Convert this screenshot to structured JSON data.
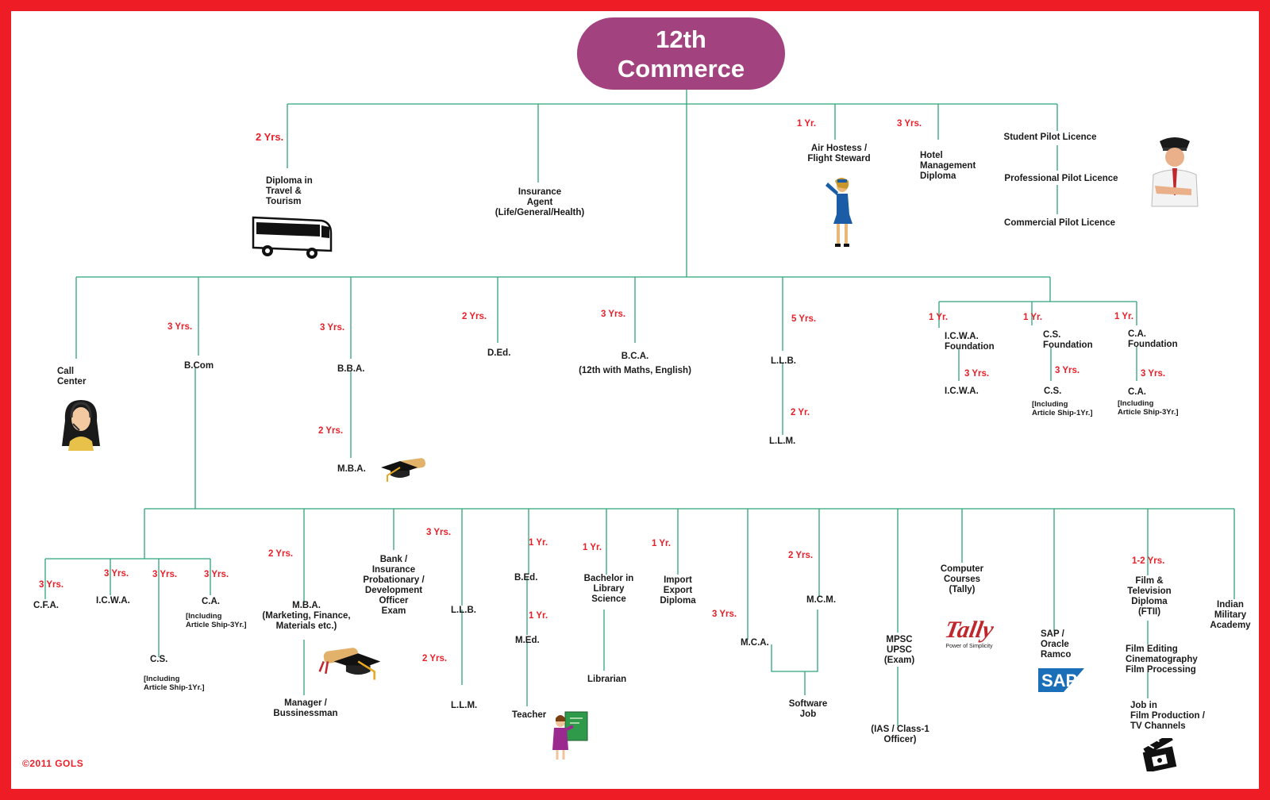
{
  "title": {
    "line1": "12th",
    "line2": "Commerce"
  },
  "colors": {
    "border": "#ee1c24",
    "line": "#2fa37a",
    "duration": "#e8202a",
    "title_bg": "#a2427e"
  },
  "top": {
    "travel": {
      "duration": "2 Yrs.",
      "label": [
        "Diploma in",
        "Travel &",
        "Tourism"
      ]
    },
    "insurance": {
      "label": [
        "Insurance",
        "Agent",
        "(Life/General/Health)"
      ]
    },
    "air": {
      "duration": "1 Yr.",
      "label": [
        "Air Hostess /",
        "Flight Steward"
      ]
    },
    "hotel": {
      "duration": "3 Yrs.",
      "label": [
        "Hotel",
        "Management",
        "Diploma"
      ]
    },
    "pilot": [
      "Student Pilot Licence",
      "Professional Pilot Licence",
      "Commercial Pilot Licence"
    ]
  },
  "mid": {
    "call": {
      "label": [
        "Call",
        "Center"
      ]
    },
    "bcom": {
      "duration": "3 Yrs.",
      "label": "B.Com"
    },
    "bba": {
      "duration": "3 Yrs.",
      "label": "B.B.A.",
      "mba_duration": "2 Yrs.",
      "mba": "M.B.A."
    },
    "ded": {
      "duration": "2 Yrs.",
      "label": "D.Ed."
    },
    "bca": {
      "duration": "3 Yrs.",
      "label": [
        "B.C.A.",
        "(12th with Maths, English)"
      ]
    },
    "llb": {
      "duration": "5 Yrs.",
      "label": "L.L.B.",
      "llm_duration": "2 Yr.",
      "llm": "L.L.M."
    },
    "icwa": {
      "duration": "1 Yr.",
      "label": [
        "I.C.W.A.",
        "Foundation"
      ],
      "next_duration": "3 Yrs.",
      "next": "I.C.W.A."
    },
    "cs": {
      "duration": "1 Yr.",
      "label": [
        "C.S.",
        "Foundation"
      ],
      "next_duration": "3 Yrs.",
      "next": "C.S.",
      "note": [
        "[Including",
        "Article Ship-1Yr.]"
      ]
    },
    "ca": {
      "duration": "1 Yr.",
      "label": [
        "C.A.",
        "Foundation"
      ],
      "next_duration": "3 Yrs.",
      "next": "C.A.",
      "note": [
        "[Including",
        "Article Ship-3Yr.]"
      ]
    }
  },
  "bottom": {
    "cfa": {
      "duration": "3 Yrs.",
      "label": "C.F.A."
    },
    "icwa": {
      "duration": "3 Yrs.",
      "label": "I.C.W.A."
    },
    "cs": {
      "duration": "3 Yrs.",
      "label": "C.S.",
      "note": [
        "[Including",
        "Article Ship-1Yr.]"
      ]
    },
    "ca": {
      "duration": "3 Yrs.",
      "label": "C.A.",
      "note": [
        "[Including",
        "Article Ship-3Yr.]"
      ]
    },
    "mba": {
      "duration": "2 Yrs.",
      "label": [
        "M.B.A.",
        "(Marketing, Finance,",
        "Materials etc.)"
      ],
      "next": [
        "Manager /",
        "Bussinessman"
      ]
    },
    "bank": {
      "label": [
        "Bank /",
        "Insurance",
        "Probationary /",
        "Development",
        "Officer",
        "Exam"
      ]
    },
    "llb": {
      "duration": "3 Yrs.",
      "label": "L.L.B.",
      "llm_duration": "2 Yrs.",
      "llm": "L.L.M."
    },
    "bed": {
      "duration": "1 Yr.",
      "label": "B.Ed.",
      "med_duration": "1 Yr.",
      "med": "M.Ed.",
      "teacher": "Teacher"
    },
    "lib": {
      "duration": "1 Yr.",
      "label": [
        "Bachelor in",
        "Library",
        "Science"
      ],
      "next": "Librarian"
    },
    "import": {
      "duration": "1 Yr.",
      "label": [
        "Import",
        "Export",
        "Diploma"
      ]
    },
    "mca": {
      "duration": "3 Yrs.",
      "label": "M.C.A."
    },
    "mcm": {
      "duration": "2 Yrs.",
      "label": "M.C.M."
    },
    "software": {
      "label": [
        "Software",
        "Job"
      ]
    },
    "mpsc": {
      "label": [
        "MPSC",
        "UPSC",
        "(Exam)"
      ],
      "next": [
        "(IAS / Class-1",
        "Officer)"
      ]
    },
    "computer": {
      "label": [
        "Computer",
        "Courses",
        "(Tally)"
      ],
      "tally_logo": "Tally",
      "tally_tag": "Power of Simplicity"
    },
    "sap": {
      "label": [
        "SAP /",
        "Oracle",
        "Ramco"
      ],
      "logo": "SAP"
    },
    "film": {
      "duration": "1-2 Yrs.",
      "label": [
        "Film &",
        "Television",
        "Diploma",
        "(FTII)"
      ],
      "next": [
        "Film Editing",
        "Cinematography",
        "Film Processing"
      ],
      "job": [
        "Job in",
        "Film Production /",
        "TV Channels"
      ]
    },
    "military": {
      "label": [
        "Indian",
        "Military",
        "Academy"
      ]
    }
  },
  "icons": [
    "bus-icon",
    "air-hostess-icon",
    "pilot-icon",
    "call-center-icon",
    "graduation-cap-icon",
    "teacher-icon",
    "clapperboard-icon"
  ],
  "copyright": "©2011 GOLS"
}
